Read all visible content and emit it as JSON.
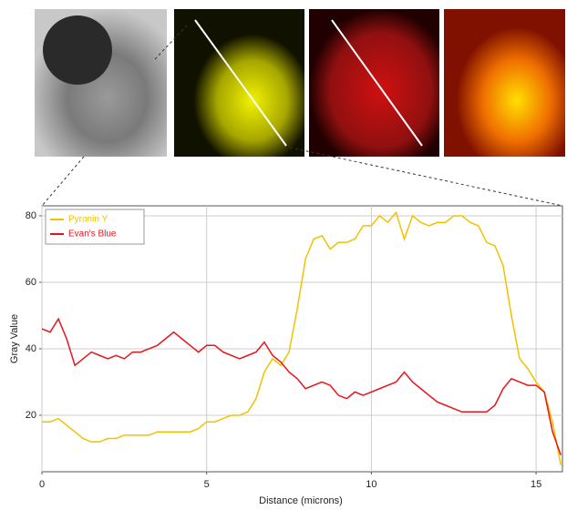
{
  "chart_data": {
    "type": "line",
    "x_label": "Distance (microns)",
    "y_label": "Gray Value",
    "x": [
      0,
      0.25,
      0.5,
      0.75,
      1,
      1.25,
      1.5,
      1.75,
      2,
      2.25,
      2.5,
      2.75,
      3,
      3.25,
      3.5,
      3.75,
      4,
      4.25,
      4.5,
      4.75,
      5,
      5.25,
      5.5,
      5.75,
      6,
      6.25,
      6.5,
      6.75,
      7,
      7.25,
      7.5,
      7.75,
      8,
      8.25,
      8.5,
      8.75,
      9,
      9.25,
      9.5,
      9.75,
      10,
      10.25,
      10.5,
      10.75,
      11,
      11.25,
      11.5,
      11.75,
      12,
      12.25,
      12.5,
      12.75,
      13,
      13.25,
      13.5,
      13.75,
      14,
      14.25,
      14.5,
      14.75,
      15,
      15.25,
      15.5,
      15.75
    ],
    "series": [
      {
        "name": "Pyronin Y",
        "color": "#f2c200",
        "values": [
          18,
          18,
          19,
          17,
          15,
          13,
          12,
          12,
          13,
          13,
          14,
          14,
          14,
          14,
          15,
          15,
          15,
          15,
          15,
          16,
          18,
          18,
          19,
          20,
          20,
          21,
          25,
          33,
          37,
          35,
          39,
          52,
          67,
          73,
          74,
          70,
          72,
          72,
          73,
          77,
          77,
          80,
          78,
          81,
          73,
          80,
          78,
          77,
          78,
          78,
          80,
          80,
          78,
          77,
          72,
          71,
          65,
          50,
          37,
          34,
          30,
          27,
          18,
          5
        ]
      },
      {
        "name": "Evan's Blue",
        "color": "#e8141c",
        "values": [
          46,
          45,
          49,
          43,
          35,
          37,
          39,
          38,
          37,
          38,
          37,
          39,
          39,
          40,
          41,
          43,
          45,
          43,
          41,
          39,
          41,
          41,
          39,
          38,
          37,
          38,
          39,
          42,
          38,
          36,
          33,
          31,
          28,
          29,
          30,
          29,
          26,
          25,
          27,
          26,
          27,
          28,
          29,
          30,
          33,
          30,
          28,
          26,
          24,
          23,
          22,
          21,
          21,
          21,
          21,
          23,
          28,
          31,
          30,
          29,
          29,
          27,
          15,
          8
        ]
      }
    ],
    "xlim": [
      0,
      15.8
    ],
    "ylim": [
      3,
      83
    ],
    "xticks": [
      0,
      5,
      10,
      15
    ],
    "yticks": [
      20,
      40,
      60,
      80
    ],
    "grid": true,
    "legend": "top-left"
  }
}
